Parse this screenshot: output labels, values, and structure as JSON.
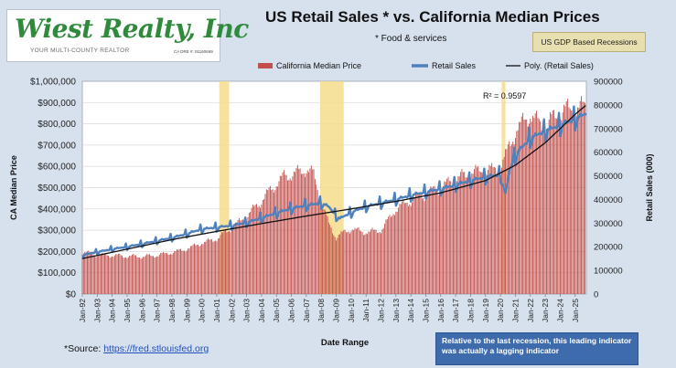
{
  "logo": {
    "name": "Wiest Realty, Inc",
    "tagline": "YOUR MULTI-COUNTY REALTOR",
    "license": "CA DRE #: 01160669"
  },
  "title": "US Retail Sales * vs. California Median Prices",
  "subtitle": "* Food & services",
  "recession_badge": "US GDP Based Recessions",
  "note": "Relative to the last recession, this leading indicator  was actually  a lagging  indicator",
  "source": {
    "prefix": "*Source: ",
    "link": "https://fred.stlouisfed.org"
  },
  "colors": {
    "bars": "#c0504d",
    "retail_line": "#4f81bd",
    "trend_line": "#111111",
    "recession": "#f4dc8c",
    "plot_bg": "#ffffff",
    "grid": "#d9d9d9"
  },
  "chart_data": {
    "type": "bar",
    "title": "US Retail Sales * vs. California Median Prices",
    "xlabel": "Date Range",
    "ylabel": "CA Median Price",
    "y2label": "Retail Sales (000)",
    "ylim": [
      0,
      1000000
    ],
    "y2lim": [
      0,
      900000
    ],
    "y_ticks": [
      "$0",
      "$100,000",
      "$200,000",
      "$300,000",
      "$400,000",
      "$500,000",
      "$600,000",
      "$700,000",
      "$800,000",
      "$900,000",
      "$1,000,000"
    ],
    "y2_ticks": [
      "0",
      "100000",
      "200000",
      "300000",
      "400000",
      "500000",
      "600000",
      "700000",
      "800000",
      "900000"
    ],
    "x_range": [
      1992.0,
      2025.75
    ],
    "x_tick_labels": [
      "Jan-92",
      "Jan-93",
      "Jan-94",
      "Jan-95",
      "Jan-96",
      "Jan-97",
      "Jan-98",
      "Jan-99",
      "Jan-00",
      "Jan-01",
      "Jan-02",
      "Jan-03",
      "Jan-04",
      "Jan-05",
      "Jan-06",
      "Jan-07",
      "Jan-08",
      "Jan-09",
      "Jan-10",
      "Jan-11",
      "Jan-12",
      "Jan-13",
      "Jan-14",
      "Jan-15",
      "Jan-16",
      "Jan-17",
      "Jan-18",
      "Jan-19",
      "Jan-20",
      "Jan-21",
      "Jan-22",
      "Jan-23",
      "Jan-24",
      "Jan-25"
    ],
    "legend": [
      "California Median Price",
      "Retail Sales",
      "Poly. (Retail Sales)"
    ],
    "legend_position": "top",
    "annotation": "R² = 0.9597",
    "recessions": [
      [
        2001.17,
        2001.83
      ],
      [
        2007.92,
        2009.5
      ],
      [
        2020.08,
        2020.33
      ]
    ],
    "ca_median_price": {
      "years": [
        1992,
        1993,
        1994,
        1995,
        1996,
        1997,
        1998,
        1999,
        2000,
        2001,
        2002,
        2003,
        2004,
        2005,
        2005.5,
        2006,
        2006.5,
        2007,
        2007.5,
        2008,
        2008.5,
        2009,
        2009.5,
        2010,
        2011,
        2012,
        2013,
        2014,
        2015,
        2016,
        2017,
        2018,
        2019,
        2020,
        2020.5,
        2021,
        2021.5,
        2022,
        2022.5,
        2023,
        2023.5,
        2024,
        2024.5,
        2025,
        2025.5
      ],
      "values": [
        197000,
        185000,
        182000,
        178000,
        176000,
        182000,
        195000,
        212000,
        240000,
        260000,
        310000,
        365000,
        440000,
        520000,
        550000,
        565000,
        570000,
        590000,
        560000,
        430000,
        330000,
        265000,
        290000,
        305000,
        290000,
        300000,
        400000,
        440000,
        470000,
        500000,
        540000,
        570000,
        580000,
        590000,
        680000,
        760000,
        810000,
        840000,
        810000,
        780000,
        830000,
        850000,
        870000,
        860000,
        880000
      ]
    },
    "retail_sales": {
      "years": [
        1992,
        1993,
        1994,
        1995,
        1996,
        1997,
        1998,
        1999,
        2000,
        2001,
        2002,
        2003,
        2004,
        2005,
        2006,
        2007,
        2008,
        2008.5,
        2009,
        2009.25,
        2010,
        2011,
        2012,
        2013,
        2014,
        2015,
        2016,
        2017,
        2018,
        2019,
        2020,
        2020.33,
        2020.6,
        2021,
        2022,
        2023,
        2024,
        2025,
        2025.75
      ],
      "values": [
        165000,
        178000,
        190000,
        200000,
        212000,
        225000,
        238000,
        255000,
        275000,
        282000,
        290000,
        302000,
        322000,
        343000,
        362000,
        375000,
        385000,
        370000,
        330000,
        320000,
        345000,
        370000,
        385000,
        400000,
        418000,
        432000,
        445000,
        462000,
        480000,
        495000,
        505000,
        420000,
        525000,
        590000,
        660000,
        690000,
        715000,
        740000,
        765000
      ]
    },
    "poly_trend": {
      "years": [
        1992,
        1995,
        1998,
        2001,
        2004,
        2007,
        2010,
        2013,
        2016,
        2019,
        2021,
        2023,
        2025,
        2025.75
      ],
      "values": [
        150000,
        190000,
        230000,
        265000,
        298000,
        330000,
        360000,
        392000,
        428000,
        480000,
        545000,
        640000,
        760000,
        800000
      ]
    }
  }
}
